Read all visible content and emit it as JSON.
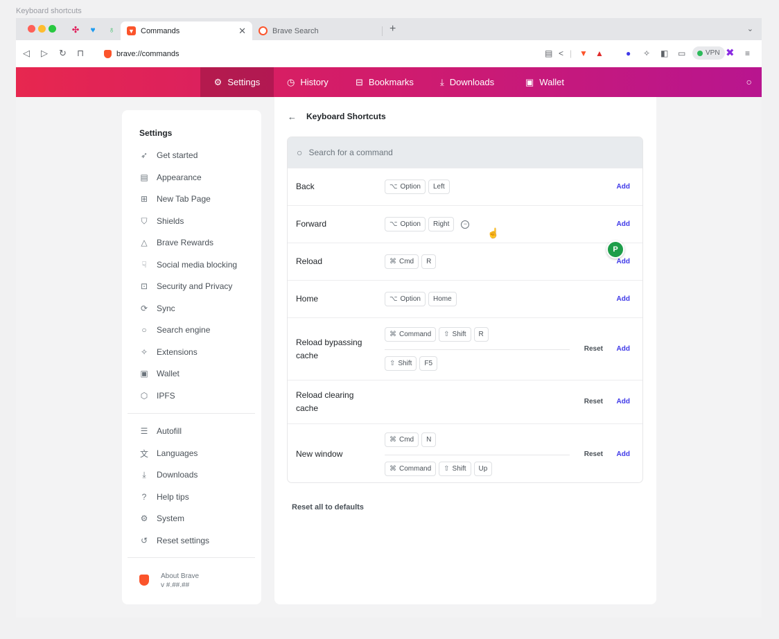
{
  "frame_title": "Keyboard shortcuts",
  "tabs": {
    "active_label": "Commands",
    "inactive_label": "Brave Search",
    "new_tab": "+"
  },
  "toolbar": {
    "url": "brave://commands",
    "vpn_label": "VPN"
  },
  "nav": {
    "items": [
      {
        "label": "Settings",
        "icon": "gear-icon"
      },
      {
        "label": "History",
        "icon": "history-icon"
      },
      {
        "label": "Bookmarks",
        "icon": "bookmark-icon"
      },
      {
        "label": "Downloads",
        "icon": "download-icon"
      },
      {
        "label": "Wallet",
        "icon": "wallet-icon"
      }
    ]
  },
  "sidebar": {
    "title": "Settings",
    "items": [
      {
        "label": "Get started",
        "icon": "rocket-icon"
      },
      {
        "label": "Appearance",
        "icon": "appearance-icon"
      },
      {
        "label": "New Tab Page",
        "icon": "new-tab-icon"
      },
      {
        "label": "Shields",
        "icon": "shield-icon"
      },
      {
        "label": "Brave Rewards",
        "icon": "rewards-icon"
      },
      {
        "label": "Social media blocking",
        "icon": "thumbs-down-icon"
      },
      {
        "label": "Security and Privacy",
        "icon": "lock-icon"
      },
      {
        "label": "Sync",
        "icon": "sync-icon"
      },
      {
        "label": "Search engine",
        "icon": "search-icon"
      },
      {
        "label": "Extensions",
        "icon": "puzzle-icon"
      },
      {
        "label": "Wallet",
        "icon": "wallet-icon"
      },
      {
        "label": "IPFS",
        "icon": "cube-icon"
      }
    ],
    "items2": [
      {
        "label": "Autofill",
        "icon": "list-icon"
      },
      {
        "label": "Languages",
        "icon": "translate-icon"
      },
      {
        "label": "Downloads",
        "icon": "download-icon"
      },
      {
        "label": "Help tips",
        "icon": "help-icon"
      },
      {
        "label": "System",
        "icon": "gear-icon"
      },
      {
        "label": "Reset settings",
        "icon": "reset-icon"
      }
    ],
    "about_title": "About Brave",
    "about_version": "v #.##.##"
  },
  "main": {
    "back_label": "←",
    "title": "Keyboard Shortcuts",
    "search_placeholder": "Search for a command",
    "add_label": "Add",
    "reset_label": "Reset",
    "reset_all": "Reset all to defaults",
    "commands": [
      {
        "name": "Back",
        "shortcuts": [
          [
            {
              "sym": "⌥",
              "label": "Option"
            },
            {
              "label": "Left"
            }
          ]
        ],
        "reset": false
      },
      {
        "name": "Forward",
        "shortcuts": [
          [
            {
              "sym": "⌥",
              "label": "Option"
            },
            {
              "label": "Right"
            }
          ]
        ],
        "reset": false,
        "removable": true
      },
      {
        "name": "Reload",
        "shortcuts": [
          [
            {
              "sym": "⌘",
              "label": "Cmd"
            },
            {
              "label": "R"
            }
          ]
        ],
        "reset": false
      },
      {
        "name": "Home",
        "shortcuts": [
          [
            {
              "sym": "⌥",
              "label": "Option"
            },
            {
              "label": "Home"
            }
          ]
        ],
        "reset": false
      },
      {
        "name": "Reload bypassing cache",
        "shortcuts": [
          [
            {
              "sym": "⌘",
              "label": "Command"
            },
            {
              "sym": "⇧",
              "label": "Shift"
            },
            {
              "label": "R"
            }
          ],
          [
            {
              "sym": "⇧",
              "label": "Shift"
            },
            {
              "label": "F5"
            }
          ]
        ],
        "reset": true
      },
      {
        "name": "Reload clearing cache",
        "shortcuts": [],
        "reset": true
      },
      {
        "name": "New window",
        "shortcuts": [
          [
            {
              "sym": "⌘",
              "label": "Cmd"
            },
            {
              "label": "N"
            }
          ],
          [
            {
              "sym": "⌘",
              "label": "Command"
            },
            {
              "sym": "⇧",
              "label": "Shift"
            },
            {
              "label": "Up"
            }
          ]
        ],
        "reset": true
      }
    ]
  },
  "avatar_letter": "P",
  "colors": {
    "accent": "#3f39e8",
    "nav_gradient_start": "#e7274f",
    "nav_gradient_end": "#b8158f",
    "brave_orange": "#fb542b"
  }
}
